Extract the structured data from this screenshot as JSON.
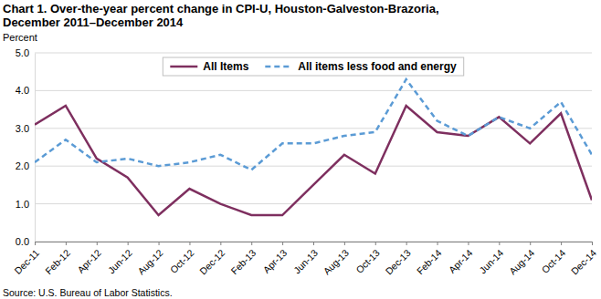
{
  "chart_data": {
    "type": "line",
    "title": [
      "Chart 1. Over-the-year percent change in CPI-U, Houston-Galveston-Brazoria,",
      "December 2011–December 2014"
    ],
    "y_label": "Percent",
    "source": "Source: U.S. Bureau of Labor Statistics.",
    "categories": [
      "Dec-11",
      "Feb-12",
      "Apr-12",
      "Jun-12",
      "Aug-12",
      "Oct-12",
      "Dec-12",
      "Feb-13",
      "Apr-13",
      "Jun-13",
      "Aug-13",
      "Oct-13",
      "Dec-13",
      "Feb-14",
      "Apr-14",
      "Jun-14",
      "Aug-14",
      "Oct-14",
      "Dec-14"
    ],
    "series": [
      {
        "name": "All Items",
        "color": "#7e2f5f",
        "line_style": "solid",
        "values": [
          3.1,
          3.6,
          2.2,
          1.7,
          0.7,
          1.4,
          1.0,
          0.7,
          0.7,
          1.5,
          2.3,
          1.8,
          3.6,
          2.9,
          2.8,
          3.3,
          2.6,
          3.4,
          1.1
        ]
      },
      {
        "name": "All items less food and energy",
        "color": "#5b9bd5",
        "line_style": "dashed",
        "values": [
          2.1,
          2.7,
          2.1,
          2.2,
          2.0,
          2.1,
          2.3,
          1.9,
          2.6,
          2.6,
          2.8,
          2.9,
          4.3,
          3.2,
          2.8,
          3.3,
          3.0,
          3.7,
          2.3
        ]
      }
    ],
    "ylim": [
      0,
      5
    ],
    "yticks": [
      {
        "value": 0,
        "label": "0.0"
      },
      {
        "value": 1,
        "label": "1.0"
      },
      {
        "value": 2,
        "label": "2.0"
      },
      {
        "value": 3,
        "label": "3.0"
      },
      {
        "value": 4,
        "label": "4.0"
      },
      {
        "value": 5,
        "label": "5.0"
      }
    ],
    "grid": true,
    "legend": "top"
  }
}
